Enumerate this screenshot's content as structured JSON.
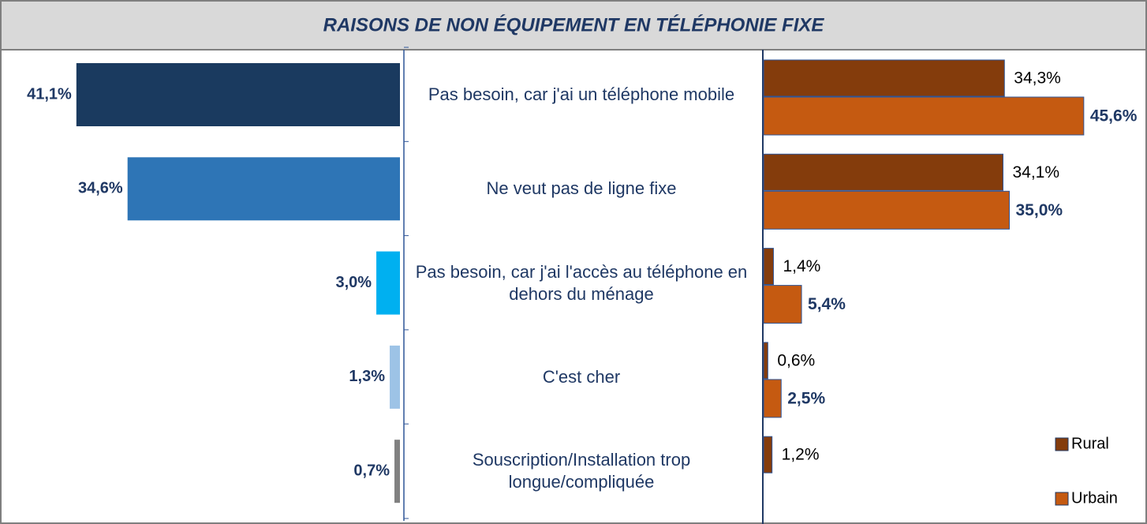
{
  "chart_data": {
    "type": "butterfly",
    "title": "RAISONS DE NON ÉQUIPEMENT EN TÉLÉPHONIE FIXE",
    "categories": [
      "Pas besoin, car j'ai un téléphone mobile",
      "Ne veut pas de ligne fixe",
      "Pas besoin, car j'ai l'accès au téléphone en dehors du ménage",
      "C'est cher",
      "Souscription/Installation trop longue/compliquée"
    ],
    "left": {
      "values": [
        41.1,
        34.6,
        3.0,
        1.3,
        0.7
      ],
      "value_labels": [
        "41,1%",
        "34,6%",
        "3,0%",
        "1,3%",
        "0,7%"
      ],
      "colors": [
        "#1a3a5f",
        "#2e75b6",
        "#00b0f0",
        "#9dc3e6",
        "#808080"
      ]
    },
    "series": [
      {
        "name": "Rural",
        "color": "#843c0c",
        "values": [
          34.3,
          34.1,
          1.4,
          0.6,
          1.2
        ],
        "value_labels": [
          "34,3%",
          "34,1%",
          "1,4%",
          "0,6%",
          "1,2%"
        ]
      },
      {
        "name": "Urbain",
        "color": "#c55a11",
        "values": [
          45.6,
          35.0,
          5.4,
          2.5,
          null
        ],
        "value_labels": [
          "45,6%",
          "35,0%",
          "5,4%",
          "2,5%",
          null
        ]
      }
    ],
    "legend": "bottom-right"
  }
}
